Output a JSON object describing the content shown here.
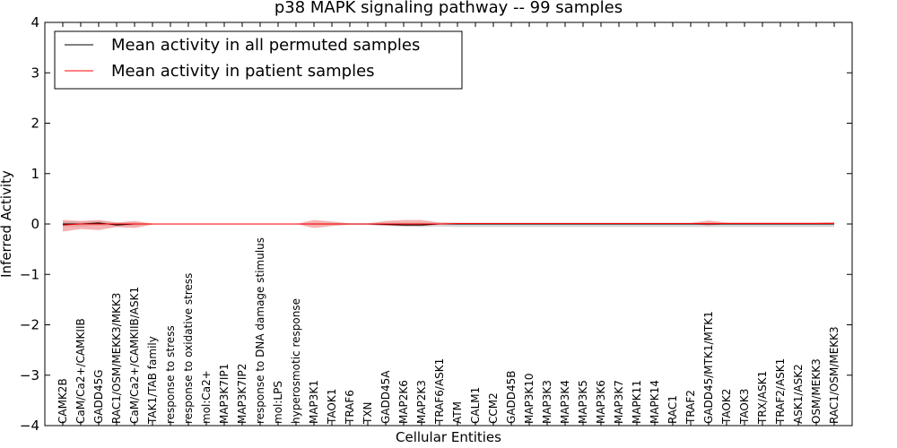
{
  "chart_data": {
    "type": "line",
    "title": "p38 MAPK signaling pathway -- 99 samples",
    "xlabel": "Cellular Entities",
    "ylabel": "Inferred Activity",
    "ylim": [
      -4,
      4
    ],
    "yticks": [
      "−4",
      "−3",
      "−2",
      "−1",
      "0",
      "1",
      "2",
      "3",
      "4"
    ],
    "yticks_values": [
      -4,
      -3,
      -2,
      -1,
      0,
      1,
      2,
      3,
      4
    ],
    "legend_position": "top-left",
    "categories": [
      "CAMK2B",
      "CaM/Ca2+/CAMKIIB",
      "GADD45G",
      "RAC1/OSM/MEKK3/MKK3",
      "CaM/Ca2+/CAMKIIB/ASK1",
      "TAK1/TAB family",
      "response to stress",
      "response to oxidative stress",
      "mol:Ca2+",
      "MAP3K7IP1",
      "MAP3K7IP2",
      "response to DNA damage stimulus",
      "mol:LPS",
      "hyperosmotic response",
      "MAP3K1",
      "TAOK1",
      "TRAF6",
      "TXN",
      "GADD45A",
      "MAP2K6",
      "MAP2K3",
      "TRAF6/ASK1",
      "ATM",
      "CALM1",
      "CCM2",
      "GADD45B",
      "MAP3K10",
      "MAP3K3",
      "MAP3K4",
      "MAP3K5",
      "MAP3K6",
      "MAP3K7",
      "MAPK11",
      "MAPK14",
      "RAC1",
      "TRAF2",
      "GADD45/MTK1/MTK1",
      "TAOK2",
      "TAOK3",
      "TRX/ASK1",
      "TRAF2/ASK1",
      "ASK1/ASK2",
      "OSM/MEKK3",
      "RAC1/OSM/MEKK3"
    ],
    "series": [
      {
        "name": "Mean activity in all permuted samples",
        "color": "#000000",
        "band_color": "#b8b8c0",
        "values": [
          0.0,
          0.0,
          0.02,
          -0.02,
          0.0,
          0.0,
          0.0,
          0.0,
          0.0,
          0.0,
          0.0,
          0.0,
          0.0,
          0.0,
          0.0,
          0.0,
          0.0,
          0.0,
          -0.01,
          -0.02,
          -0.02,
          0.0,
          0.0,
          0.0,
          0.0,
          0.0,
          0.0,
          0.0,
          0.0,
          0.0,
          0.0,
          0.0,
          0.0,
          0.0,
          0.0,
          0.0,
          0.0,
          0.0,
          0.0,
          0.0,
          0.0,
          0.0,
          0.0,
          0.0
        ],
        "lower": [
          -0.05,
          -0.05,
          -0.03,
          -0.05,
          -0.03,
          -0.01,
          -0.01,
          -0.01,
          -0.01,
          -0.01,
          -0.01,
          -0.01,
          -0.01,
          -0.01,
          -0.02,
          -0.02,
          -0.02,
          -0.02,
          -0.04,
          -0.05,
          -0.06,
          -0.05,
          -0.06,
          -0.06,
          -0.06,
          -0.06,
          -0.06,
          -0.06,
          -0.06,
          -0.06,
          -0.06,
          -0.06,
          -0.06,
          -0.06,
          -0.06,
          -0.06,
          -0.06,
          -0.06,
          -0.06,
          -0.06,
          -0.06,
          -0.06,
          -0.06,
          -0.06
        ],
        "upper": [
          0.05,
          0.05,
          0.06,
          0.03,
          0.03,
          0.01,
          0.01,
          0.01,
          0.01,
          0.01,
          0.01,
          0.01,
          0.01,
          0.01,
          0.02,
          0.02,
          0.02,
          0.02,
          0.03,
          0.03,
          0.03,
          0.03,
          0.03,
          0.03,
          0.03,
          0.03,
          0.03,
          0.03,
          0.03,
          0.03,
          0.03,
          0.03,
          0.03,
          0.03,
          0.03,
          0.03,
          0.03,
          0.03,
          0.03,
          0.03,
          0.03,
          0.03,
          0.03,
          0.03
        ]
      },
      {
        "name": "Mean activity in patient samples",
        "color": "#ff0000",
        "band_color": "#f08080",
        "values": [
          -0.02,
          0.0,
          0.0,
          0.0,
          0.0,
          0.0,
          0.0,
          0.0,
          0.0,
          0.0,
          0.0,
          0.0,
          0.0,
          0.0,
          0.0,
          0.0,
          0.0,
          0.0,
          0.0,
          0.0,
          0.0,
          0.0,
          0.01,
          0.01,
          0.01,
          0.01,
          0.01,
          0.01,
          0.01,
          0.01,
          0.01,
          0.01,
          0.01,
          0.01,
          0.01,
          0.01,
          0.01,
          0.01,
          0.01,
          0.01,
          0.01,
          0.01,
          0.01,
          0.01
        ],
        "lower": [
          -0.15,
          -0.1,
          -0.12,
          -0.06,
          -0.08,
          -0.01,
          0.0,
          0.0,
          0.0,
          0.0,
          0.0,
          0.0,
          0.0,
          0.0,
          -0.08,
          -0.04,
          -0.01,
          -0.01,
          -0.03,
          -0.04,
          -0.04,
          -0.01,
          0.0,
          0.0,
          0.0,
          0.0,
          0.0,
          0.0,
          0.0,
          0.0,
          0.0,
          0.0,
          0.0,
          0.0,
          0.0,
          0.0,
          -0.03,
          0.0,
          0.0,
          0.0,
          0.0,
          0.0,
          0.0,
          0.0
        ],
        "upper": [
          0.08,
          0.06,
          0.08,
          0.03,
          0.06,
          0.01,
          0.0,
          0.0,
          0.0,
          0.0,
          0.0,
          0.0,
          0.0,
          0.0,
          0.08,
          0.05,
          0.01,
          0.01,
          0.06,
          0.08,
          0.08,
          0.03,
          0.02,
          0.02,
          0.02,
          0.02,
          0.02,
          0.02,
          0.02,
          0.02,
          0.02,
          0.02,
          0.02,
          0.02,
          0.02,
          0.02,
          0.07,
          0.03,
          0.03,
          0.03,
          0.03,
          0.03,
          0.03,
          0.04
        ]
      }
    ]
  }
}
